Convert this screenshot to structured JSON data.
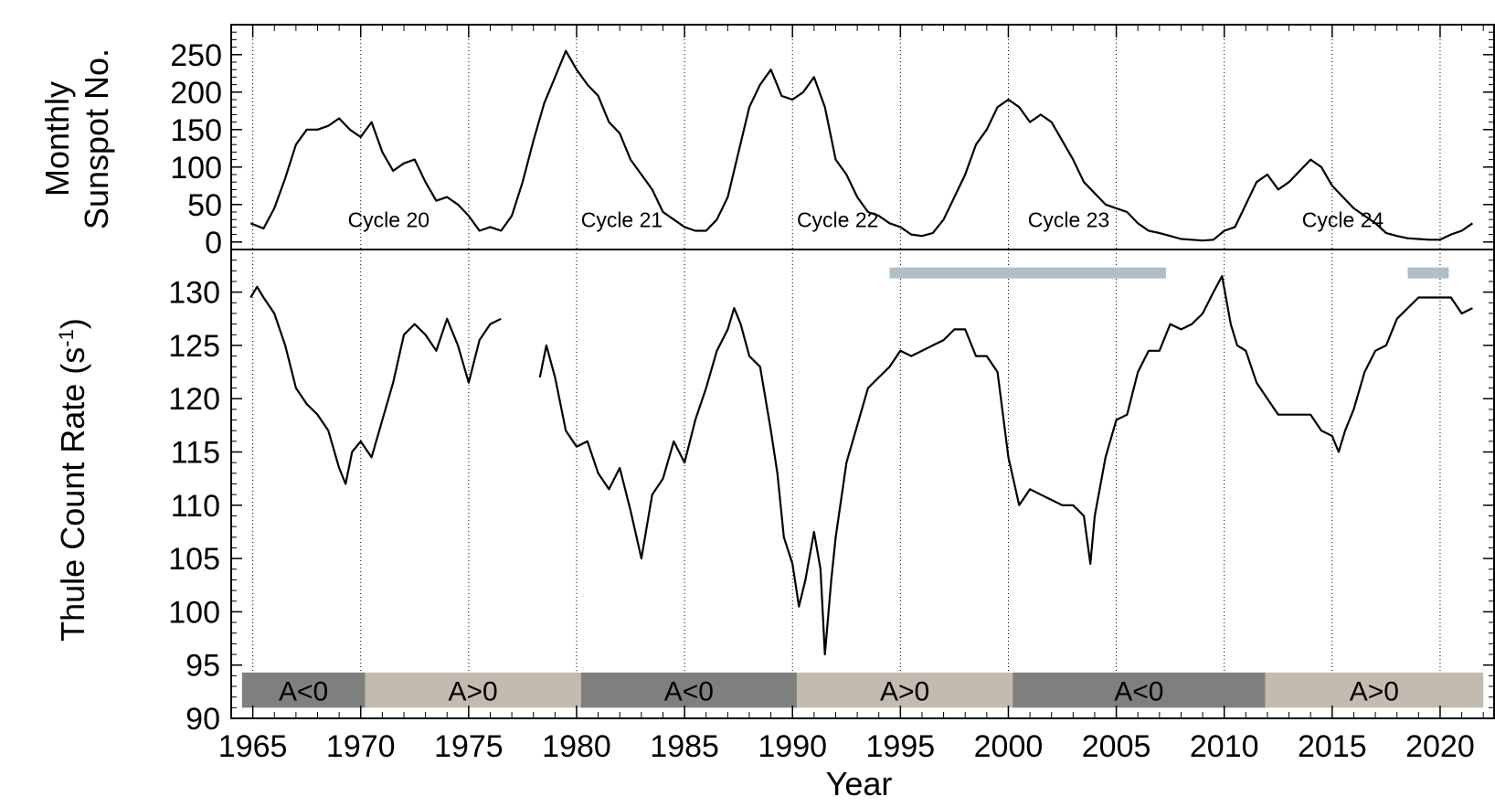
{
  "chart_data": [
    {
      "type": "line",
      "panel": "top",
      "ylabel_line1": "Monthly",
      "ylabel_line2": "Sunspot No.",
      "ylim": [
        -10,
        290
      ],
      "yticks": [
        0,
        50,
        100,
        150,
        200,
        250
      ],
      "xlim": [
        1964,
        2022.5
      ],
      "grid": "vertical dotted every 5 years",
      "annotations": [
        {
          "text": "Cycle 20",
          "x": 1969.4,
          "y": 20
        },
        {
          "text": "Cycle 21",
          "x": 1980.2,
          "y": 20
        },
        {
          "text": "Cycle 22",
          "x": 1990.2,
          "y": 20
        },
        {
          "text": "Cycle 23",
          "x": 2000.9,
          "y": 20
        },
        {
          "text": "Cycle 24",
          "x": 2013.6,
          "y": 20
        }
      ],
      "series": [
        {
          "x": [
            1964.9,
            1965.5,
            1966.0,
            1966.5,
            1967.0,
            1967.5,
            1968.0,
            1968.5,
            1969.0,
            1969.5,
            1970.0,
            1970.5,
            1971.0,
            1971.5,
            1972.0,
            1972.5,
            1973.0,
            1973.5,
            1974.0,
            1974.5,
            1975.0,
            1975.5,
            1976.0,
            1976.5,
            1977.0,
            1977.5,
            1978.0,
            1978.5,
            1979.0,
            1979.5,
            1980.0,
            1980.5,
            1981.0,
            1981.5,
            1982.0,
            1982.5,
            1983.0,
            1983.5,
            1984.0,
            1984.5,
            1985.0,
            1985.5,
            1986.0,
            1986.5,
            1987.0,
            1987.5,
            1988.0,
            1988.5,
            1989.0,
            1989.5,
            1990.0,
            1990.5,
            1991.0,
            1991.5,
            1992.0,
            1992.5,
            1993.0,
            1993.5,
            1994.0,
            1994.5,
            1995.0,
            1995.5,
            1996.0,
            1996.5,
            1997.0,
            1997.5,
            1998.0,
            1998.5,
            1999.0,
            1999.5,
            2000.0,
            2000.5,
            2001.0,
            2001.5,
            2002.0,
            2002.5,
            2003.0,
            2003.5,
            2004.0,
            2004.5,
            2005.0,
            2005.5,
            2006.0,
            2006.5,
            2007.0,
            2007.5,
            2008.0,
            2008.5,
            2009.0,
            2009.5,
            2010.0,
            2010.5,
            2011.0,
            2011.5,
            2012.0,
            2012.5,
            2013.0,
            2013.5,
            2014.0,
            2014.5,
            2015.0,
            2015.5,
            2016.0,
            2016.5,
            2017.0,
            2017.5,
            2018.0,
            2018.5,
            2019.0,
            2019.5,
            2020.0,
            2020.5,
            2021.0,
            2021.5
          ],
          "values": [
            25,
            18,
            45,
            85,
            130,
            150,
            150,
            155,
            165,
            150,
            140,
            160,
            120,
            95,
            105,
            110,
            80,
            55,
            60,
            50,
            35,
            15,
            20,
            15,
            35,
            80,
            135,
            185,
            220,
            255,
            230,
            210,
            195,
            160,
            145,
            110,
            90,
            70,
            40,
            30,
            20,
            15,
            15,
            30,
            60,
            120,
            180,
            210,
            230,
            195,
            190,
            200,
            220,
            180,
            110,
            90,
            60,
            40,
            35,
            25,
            20,
            10,
            8,
            12,
            30,
            60,
            90,
            130,
            150,
            180,
            190,
            180,
            160,
            170,
            160,
            135,
            110,
            80,
            65,
            50,
            45,
            40,
            25,
            15,
            12,
            8,
            4,
            3,
            2,
            3,
            15,
            20,
            50,
            80,
            90,
            70,
            80,
            95,
            110,
            100,
            75,
            60,
            45,
            35,
            25,
            12,
            8,
            5,
            4,
            3,
            3,
            10,
            15,
            25
          ]
        }
      ]
    },
    {
      "type": "line",
      "panel": "bottom",
      "ylabel": "Thule Count Rate  (s",
      "ylabel_sup": "-1",
      "ylabel_close": ")",
      "xlabel": "Year",
      "ylim": [
        90,
        134
      ],
      "yticks": [
        90,
        95,
        100,
        105,
        110,
        115,
        120,
        125,
        130
      ],
      "xticks": [
        1965,
        1970,
        1975,
        1980,
        1985,
        1990,
        1995,
        2000,
        2005,
        2010,
        2015,
        2020
      ],
      "xlim": [
        1964,
        2022.5
      ],
      "grid": "vertical dotted every 5 years",
      "bars": [
        {
          "x0": 1994.5,
          "x1": 2007.3,
          "y": 131.8,
          "color": "#b0bec8"
        },
        {
          "x0": 2018.5,
          "x1": 2020.4,
          "y": 131.8,
          "color": "#b0bec8"
        }
      ],
      "polarity": [
        {
          "label": "A<0",
          "x0": 1964.5,
          "x1": 1970.2,
          "color": "#7f7f7f"
        },
        {
          "label": "A>0",
          "x0": 1970.2,
          "x1": 1980.2,
          "color": "#c4bbb0"
        },
        {
          "label": "A<0",
          "x0": 1980.2,
          "x1": 1990.2,
          "color": "#7f7f7f"
        },
        {
          "label": "A>0",
          "x0": 1990.2,
          "x1": 2000.2,
          "color": "#c4bbb0"
        },
        {
          "label": "A<0",
          "x0": 2000.2,
          "x1": 2011.9,
          "color": "#7f7f7f"
        },
        {
          "label": "A>0",
          "x0": 2011.9,
          "x1": 2022.0,
          "color": "#c4bbb0"
        }
      ],
      "series": [
        {
          "segments": [
            {
              "x": [
                1964.9,
                1965.2,
                1965.5,
                1966.0,
                1966.5,
                1967.0,
                1967.5,
                1968.0,
                1968.5,
                1969.0,
                1969.3,
                1969.6,
                1970.0,
                1970.5,
                1971.0,
                1971.5,
                1972.0,
                1972.5,
                1973.0,
                1973.5,
                1974.0,
                1974.5,
                1975.0,
                1975.5,
                1976.0,
                1976.5
              ],
              "values": [
                129.5,
                130.5,
                129.5,
                128.0,
                125.0,
                121.0,
                119.5,
                118.5,
                117.0,
                113.5,
                112.0,
                115.0,
                116.0,
                114.5,
                118.0,
                121.5,
                126.0,
                127.0,
                126.0,
                124.5,
                127.5,
                125.0,
                121.5,
                125.5,
                127.0,
                127.5
              ]
            },
            {
              "x": [
                1978.3,
                1978.6,
                1979.0,
                1979.5,
                1980.0,
                1980.5,
                1981.0,
                1981.5,
                1982.0,
                1982.5,
                1983.0,
                1983.5,
                1984.0,
                1984.5,
                1985.0,
                1985.5,
                1986.0,
                1986.5,
                1987.0,
                1987.3,
                1987.6,
                1988.0,
                1988.5,
                1989.0,
                1989.3,
                1989.6,
                1990.0,
                1990.3,
                1990.6,
                1991.0,
                1991.3,
                1991.5,
                1991.8,
                1992.0,
                1992.5,
                1993.0,
                1993.5,
                1994.0,
                1994.5,
                1995.0,
                1995.5,
                1996.0,
                1996.5,
                1997.0,
                1997.5,
                1998.0,
                1998.5,
                1999.0,
                1999.5,
                2000.0,
                2000.5,
                2001.0,
                2001.5,
                2002.0,
                2002.5,
                2003.0,
                2003.5,
                2003.8,
                2004.0,
                2004.5,
                2005.0,
                2005.5,
                2006.0,
                2006.5,
                2007.0,
                2007.5,
                2008.0,
                2008.5,
                2009.0,
                2009.5,
                2009.9,
                2010.3,
                2010.6,
                2011.0,
                2011.5,
                2012.0,
                2012.5,
                2013.0,
                2013.5,
                2014.0,
                2014.5,
                2015.0,
                2015.3,
                2015.6,
                2016.0,
                2016.5,
                2017.0,
                2017.5,
                2018.0,
                2018.5,
                2019.0,
                2019.5,
                2020.0,
                2020.5,
                2021.0,
                2021.5
              ],
              "values": [
                122.0,
                125.0,
                122.0,
                117.0,
                115.5,
                116.0,
                113.0,
                111.5,
                113.5,
                109.5,
                105.0,
                111.0,
                112.5,
                116.0,
                114.0,
                118.0,
                121.0,
                124.5,
                126.5,
                128.5,
                127.0,
                124.0,
                123.0,
                117.0,
                113.0,
                107.0,
                104.5,
                100.5,
                103.0,
                107.5,
                104.0,
                96.0,
                103.0,
                107.0,
                114.0,
                117.5,
                121.0,
                122.0,
                123.0,
                124.5,
                124.0,
                124.5,
                125.0,
                125.5,
                126.5,
                126.5,
                124.0,
                124.0,
                122.5,
                114.5,
                110.0,
                111.5,
                111.0,
                110.5,
                110.0,
                110.0,
                109.0,
                104.5,
                109.0,
                114.5,
                118.0,
                118.5,
                122.5,
                124.5,
                124.5,
                127.0,
                126.5,
                127.0,
                128.0,
                130.0,
                131.5,
                127.0,
                125.0,
                124.5,
                121.5,
                120.0,
                118.5,
                118.5,
                118.5,
                118.5,
                117.0,
                116.5,
                115.0,
                117.0,
                119.0,
                122.5,
                124.5,
                125.0,
                127.5,
                128.5,
                129.5,
                129.5,
                129.5,
                129.5,
                128.0,
                128.5
              ]
            }
          ]
        }
      ]
    }
  ]
}
